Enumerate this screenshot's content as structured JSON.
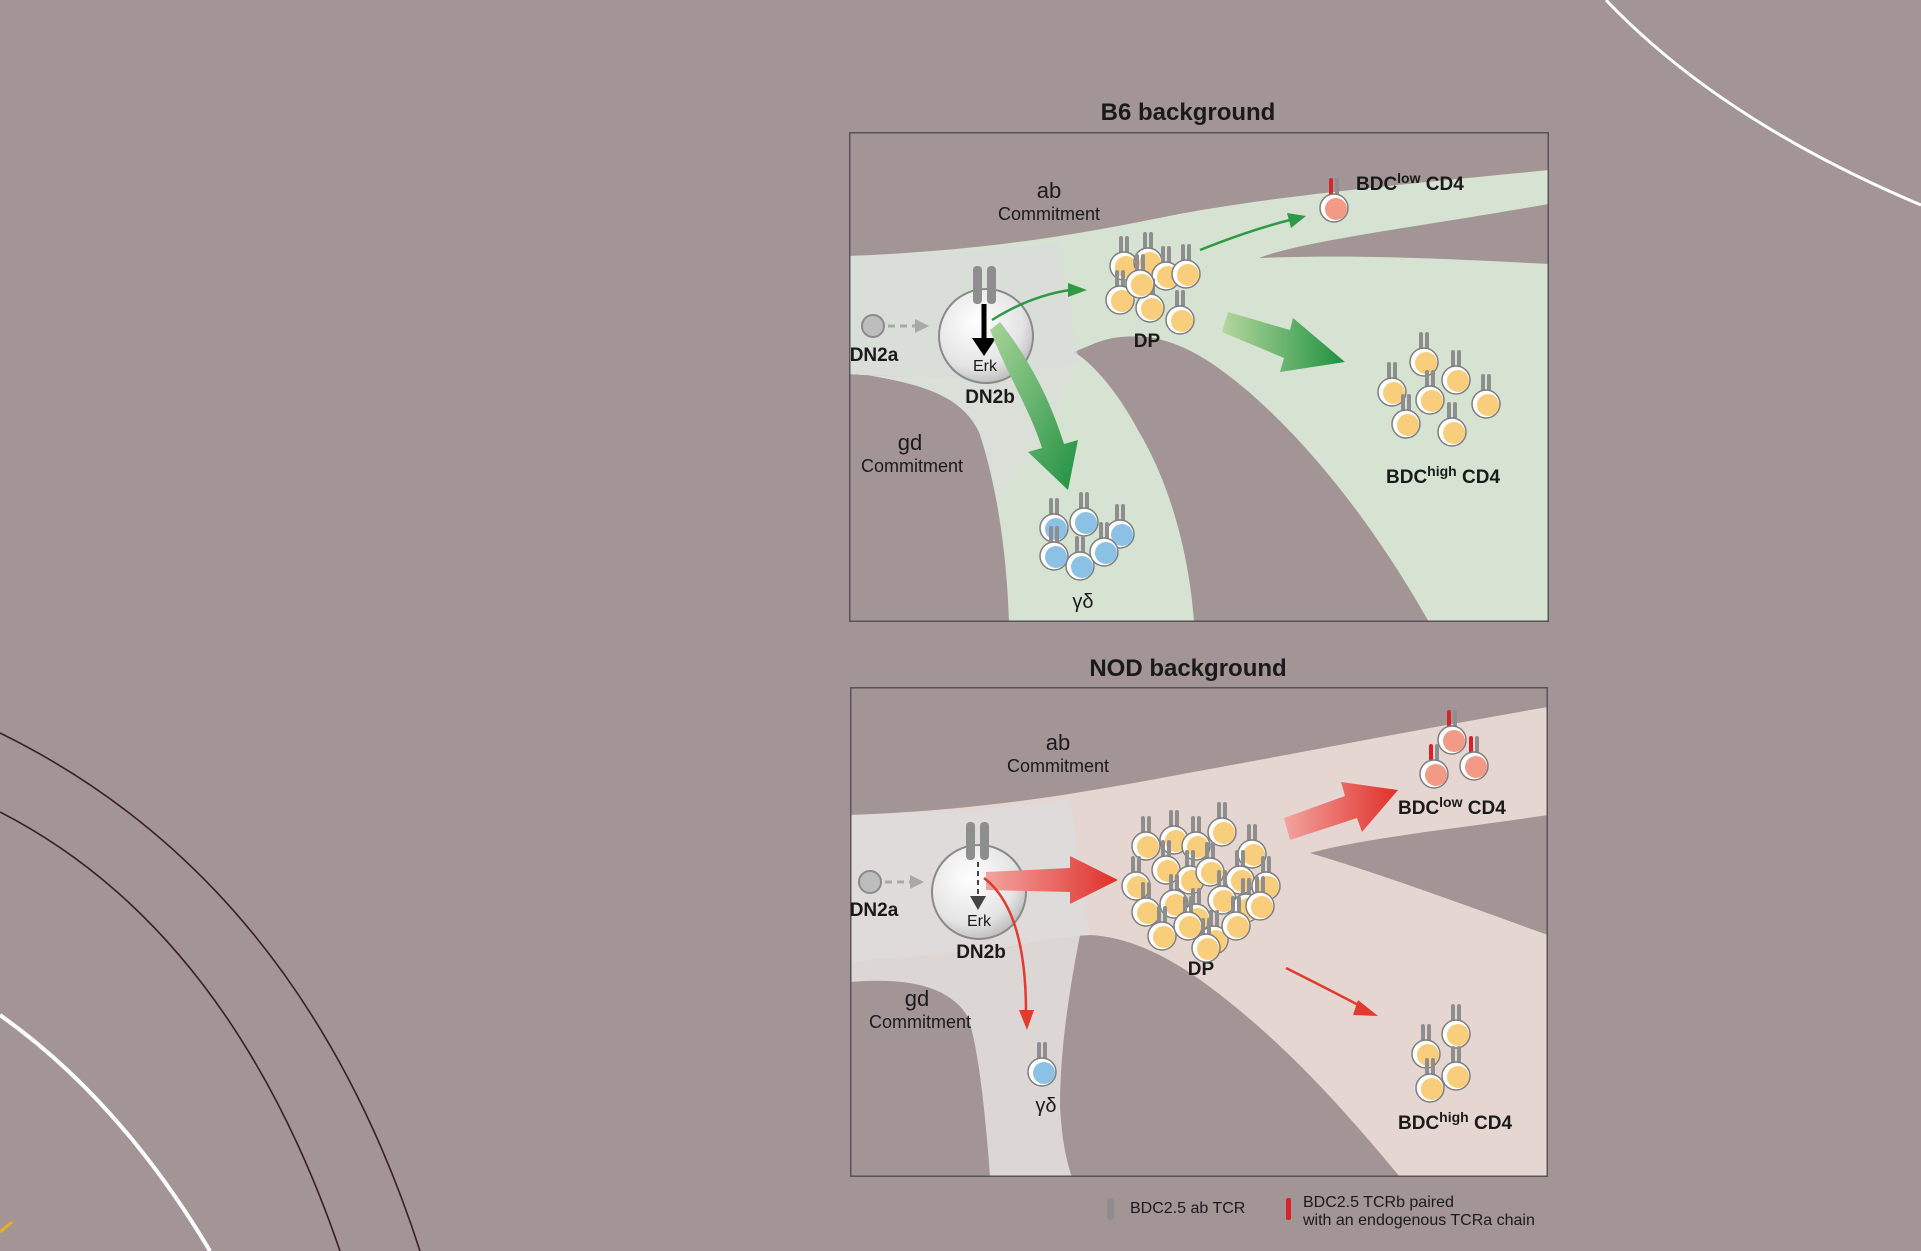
{
  "colors": {
    "background": "#a39595",
    "b6_path": "#d6e3d3",
    "nod_path": "#e6d6d1",
    "green_arrow": "#2e9a45",
    "red_arrow": "#e23b2e",
    "dp_cell": "#f8cd7c",
    "gd_cell": "#8cc1e6",
    "low_cell": "#f29a85",
    "tcr_gray": "#8e8e8e",
    "tcr_red": "#d8232a"
  },
  "b6": {
    "title": "B6 background",
    "ab": "ab",
    "ab_commitment": "Commitment",
    "gd": "gd",
    "gd_commitment": "Commitment",
    "dn2a": "DN2a",
    "dn2b": "DN2b",
    "erk": "Erk",
    "dp": "DP",
    "gamma_delta": "γδ",
    "bdc_low": "BDC",
    "low_sup": "low",
    "low_cd4": " CD4",
    "bdc_high": "BDC",
    "high_sup": "high",
    "high_cd4": " CD4"
  },
  "nod": {
    "title": "NOD background",
    "ab": "ab",
    "ab_commitment": "Commitment",
    "gd": "gd",
    "gd_commitment": "Commitment",
    "dn2a": "DN2a",
    "dn2b": "DN2b",
    "erk": "Erk",
    "dp": "DP",
    "gamma_delta": "γδ",
    "bdc_low": "BDC",
    "low_sup": "low",
    "low_cd4": " CD4",
    "bdc_high": "BDC",
    "high_sup": "high",
    "high_cd4": " CD4"
  },
  "legend": {
    "gray_tcr": "BDC2.5 ab TCR",
    "red_tcr_line1": "BDC2.5 TCRb paired",
    "red_tcr_line2": "with an endogenous TCRa chain"
  }
}
